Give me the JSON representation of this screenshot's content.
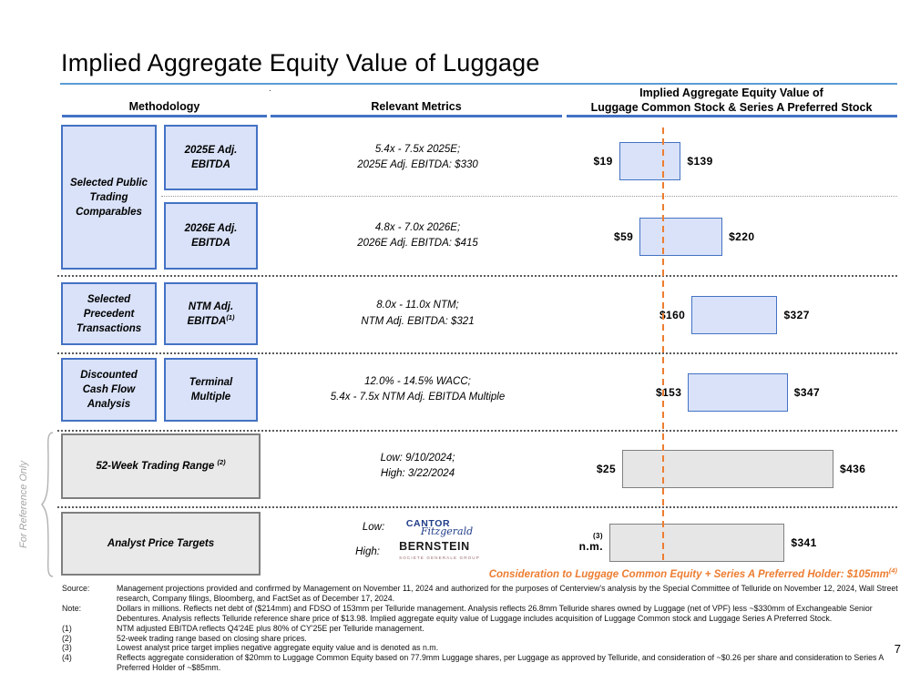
{
  "slide": {
    "title": "Implied Aggregate Equity Value of Luggage",
    "page_number": "7",
    "stray_mark": "."
  },
  "header": {
    "methodology": "Methodology",
    "relevant_metrics": "Relevant Metrics",
    "implied_value_line1": "Implied Aggregate Equity Value of",
    "implied_value_line2": "Luggage Common Stock & Series A Preferred Stock"
  },
  "reference_only_label": "For Reference Only",
  "methodology": {
    "group1": "Selected Public Trading Comparables",
    "group2": "Selected Precedent Transactions",
    "group3": "Discounted Cash Flow Analysis",
    "sub1": "2025E Adj. EBITDA",
    "sub2": "2026E Adj. EBITDA",
    "sub3": "NTM Adj. EBITDA",
    "sub3_sup": "(1)",
    "sub4": "Terminal Multiple",
    "wide1": "52-Week Trading Range",
    "wide1_sup": "(2)",
    "wide2": "Analyst Price Targets"
  },
  "metrics": {
    "m1_line1": "5.4x - 7.5x 2025E;",
    "m1_line2": "2025E Adj. EBITDA: $330",
    "m2_line1": "4.8x - 7.0x 2026E;",
    "m2_line2": "2026E Adj. EBITDA: $415",
    "m3_line1": "8.0x - 11.0x NTM;",
    "m3_line2": "NTM Adj. EBITDA: $321",
    "m4_line1": "12.0% - 14.5% WACC;",
    "m4_line2": "5.4x - 7.5x NTM Adj. EBITDA Multiple",
    "m5_line1": "Low: 9/10/2024;",
    "m5_line2": "High: 3/22/2024",
    "m6_low_label": "Low:",
    "m6_high_label": "High:",
    "cantor_logo_line1": "CANTOR",
    "cantor_logo_line2": "Fitzgerald",
    "bernstein_logo_line1": "BERNSTEIN",
    "bernstein_logo_line2": "SOCIETE GENERALE GROUP"
  },
  "chart_data": {
    "type": "bar",
    "subtype": "horizontal-range (football field)",
    "title": "Implied Aggregate Equity Value of Luggage Common Stock & Series A Preferred Stock",
    "unit": "USD millions",
    "xlim": [
      -69,
      560
    ],
    "grid": false,
    "reference_line": {
      "value": 105,
      "color": "#ED7D31",
      "style": "dashed",
      "label": "Consideration to Luggage Common Equity + Series A Preferred Holder: $105mm"
    },
    "rows": [
      {
        "name": "Selected Public Trading Comparables - 2025E Adj. EBITDA",
        "low": 19,
        "high": 139,
        "low_label": "$19",
        "high_label": "$139",
        "color": "blue"
      },
      {
        "name": "Selected Public Trading Comparables - 2026E Adj. EBITDA",
        "low": 59,
        "high": 220,
        "low_label": "$59",
        "high_label": "$220",
        "color": "blue"
      },
      {
        "name": "Selected Precedent Transactions - NTM Adj. EBITDA",
        "low": 160,
        "high": 327,
        "low_label": "$160",
        "high_label": "$327",
        "color": "blue"
      },
      {
        "name": "Discounted Cash Flow Analysis - Terminal Multiple",
        "low": 153,
        "high": 347,
        "low_label": "$153",
        "high_label": "$347",
        "color": "blue"
      },
      {
        "name": "52-Week Trading Range",
        "low": 25,
        "high": 436,
        "low_label": "$25",
        "high_label": "$436",
        "color": "gray"
      },
      {
        "name": "Analyst Price Targets",
        "low": 0,
        "high": 341,
        "low_label": "n.m.",
        "low_label_sup": "(3)",
        "high_label": "$341",
        "color": "gray"
      }
    ]
  },
  "consideration": {
    "text": "Consideration to Luggage Common Equity + Series A Preferred Holder: $105mm",
    "sup": "(4)"
  },
  "footnotes": [
    {
      "label": "Source:",
      "text": "Management projections provided and confirmed by Management on November 11, 2024 and authorized for the purposes of Centerview's analysis by the Special Committee of Telluride on November 12, 2024, Wall Street research, Company filings, Bloomberg, and FactSet as of December 17, 2024."
    },
    {
      "label": "Note:",
      "text": "Dollars in millions. Reflects net debt of ($214mm) and FDSO of 153mm per Telluride management. Analysis reflects 26.8mm Telluride shares owned by Luggage (net of VPF) less ~$330mm of Exchangeable Senior Debentures. Analysis reflects Telluride reference share price of $13.98. Implied aggregate equity value of Luggage includes acquisition of Luggage Common stock and Luggage Series A Preferred Stock."
    },
    {
      "label": "(1)",
      "text": "NTM adjusted EBITDA reflects Q4'24E plus 80% of CY'25E per Telluride management."
    },
    {
      "label": "(2)",
      "text": "52-week trading range based on closing share prices."
    },
    {
      "label": "(3)",
      "text": "Lowest analyst price target implies negative aggregate equity value and is denoted as n.m."
    },
    {
      "label": "(4)",
      "text": "Reflects aggregate consideration of $20mm to Luggage Common Equity based on 77.9mm Luggage shares, per Luggage as approved by Telluride, and consideration of ~$0.26 per share and consideration to Series A Preferred Holder of ~$85mm."
    }
  ],
  "colors": {
    "accent_blue": "#4472C4",
    "light_blue_fill": "#D9E2F8",
    "title_underline_blue": "#5B9BD5",
    "orange": "#ED7D31",
    "gray_fill": "#E8E8E8",
    "gray_border": "#7F7F7F"
  }
}
